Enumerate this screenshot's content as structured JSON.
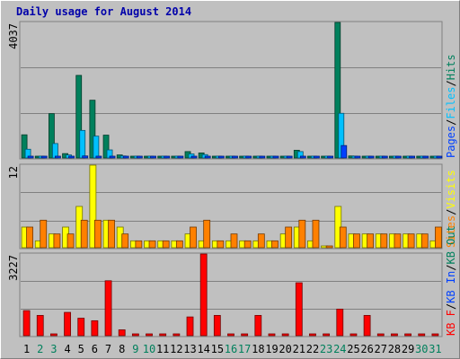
{
  "title": "Daily usage for August 2014",
  "colors": {
    "hits": "#00805c",
    "files": "#00c0ff",
    "pages": "#0040ff",
    "visits": "#ffff00",
    "sites": "#ff8000",
    "kb_in": "#0040ff",
    "kb_out": "#00805c",
    "kb_f": "#ff0000",
    "weekday_label": "#000000",
    "weekend_label": "#00805c",
    "label_slash": "#000000"
  },
  "chart_data": [
    {
      "type": "bar",
      "panel": "hits-files-pages",
      "ymax_label": "4037",
      "ylim": [
        0,
        4037
      ],
      "right_labels": [
        {
          "text": "Pages",
          "color_key": "pages"
        },
        {
          "text": "/",
          "color_key": "label_slash"
        },
        {
          "text": "Files",
          "color_key": "files"
        },
        {
          "text": "/",
          "color_key": "label_slash"
        },
        {
          "text": "Hits",
          "color_key": "hits"
        }
      ],
      "series": [
        {
          "color_key": "hits",
          "values": [
            690,
            30,
            1320,
            130,
            2460,
            1720,
            680,
            90,
            30,
            30,
            30,
            30,
            190,
            150,
            30,
            30,
            30,
            30,
            30,
            30,
            230,
            30,
            30,
            4037,
            60,
            40,
            40,
            50,
            40,
            40,
            40
          ]
        },
        {
          "color_key": "files",
          "values": [
            260,
            20,
            430,
            90,
            820,
            650,
            240,
            60,
            20,
            20,
            20,
            20,
            120,
            100,
            20,
            20,
            20,
            20,
            20,
            20,
            190,
            20,
            20,
            1330,
            40,
            30,
            30,
            40,
            30,
            30,
            30
          ]
        },
        {
          "color_key": "pages",
          "values": [
            30,
            10,
            40,
            10,
            60,
            50,
            30,
            10,
            10,
            10,
            10,
            10,
            20,
            20,
            10,
            10,
            10,
            10,
            10,
            10,
            30,
            10,
            10,
            370,
            10,
            10,
            10,
            10,
            10,
            10,
            10
          ]
        }
      ]
    },
    {
      "type": "bar",
      "panel": "visits-sites",
      "ymax_label": "12",
      "ylim": [
        0,
        12
      ],
      "right_labels": [
        {
          "text": "Sites",
          "color_key": "sites"
        },
        {
          "text": "/",
          "color_key": "label_slash"
        },
        {
          "text": "Visits",
          "color_key": "visits"
        }
      ],
      "series": [
        {
          "color_key": "visits",
          "values": [
            3,
            1,
            2,
            3,
            6,
            12,
            4,
            3,
            1,
            1,
            1,
            1,
            2,
            1,
            1,
            1,
            1,
            1,
            1,
            2,
            3,
            1,
            0,
            6,
            2,
            2,
            2,
            2,
            2,
            2,
            1
          ]
        },
        {
          "color_key": "sites",
          "values": [
            3,
            4,
            2,
            2,
            4,
            4,
            4,
            2,
            1,
            1,
            1,
            1,
            3,
            4,
            1,
            2,
            1,
            2,
            1,
            3,
            4,
            4,
            0,
            3,
            2,
            2,
            2,
            2,
            2,
            2,
            3
          ]
        }
      ]
    },
    {
      "type": "bar",
      "panel": "kb",
      "ymax_label": "3227",
      "ylim": [
        0,
        3227
      ],
      "right_labels": [
        {
          "text": "KB F",
          "color_key": "kb_f"
        },
        {
          "text": "/",
          "color_key": "label_slash"
        },
        {
          "text": "KB In",
          "color_key": "kb_in"
        },
        {
          "text": "/",
          "color_key": "label_slash"
        },
        {
          "text": "KB Out",
          "color_key": "kb_out"
        }
      ],
      "series": [
        {
          "color_key": "kb_f",
          "values": [
            990,
            800,
            20,
            920,
            690,
            590,
            2170,
            230,
            20,
            20,
            20,
            20,
            740,
            3227,
            800,
            20,
            20,
            800,
            20,
            20,
            2090,
            20,
            20,
            1050,
            20,
            800,
            20,
            20,
            20,
            20,
            20
          ]
        }
      ]
    }
  ],
  "x_labels": [
    "1",
    "2",
    "3",
    "4",
    "5",
    "6",
    "7",
    "8",
    "9",
    "10",
    "11",
    "12",
    "13",
    "14",
    "15",
    "16",
    "17",
    "18",
    "19",
    "20",
    "21",
    "22",
    "23",
    "24",
    "25",
    "26",
    "27",
    "28",
    "29",
    "30",
    "31"
  ],
  "weekend_days": [
    "2",
    "3",
    "9",
    "10",
    "16",
    "17",
    "23",
    "24",
    "30",
    "31"
  ]
}
